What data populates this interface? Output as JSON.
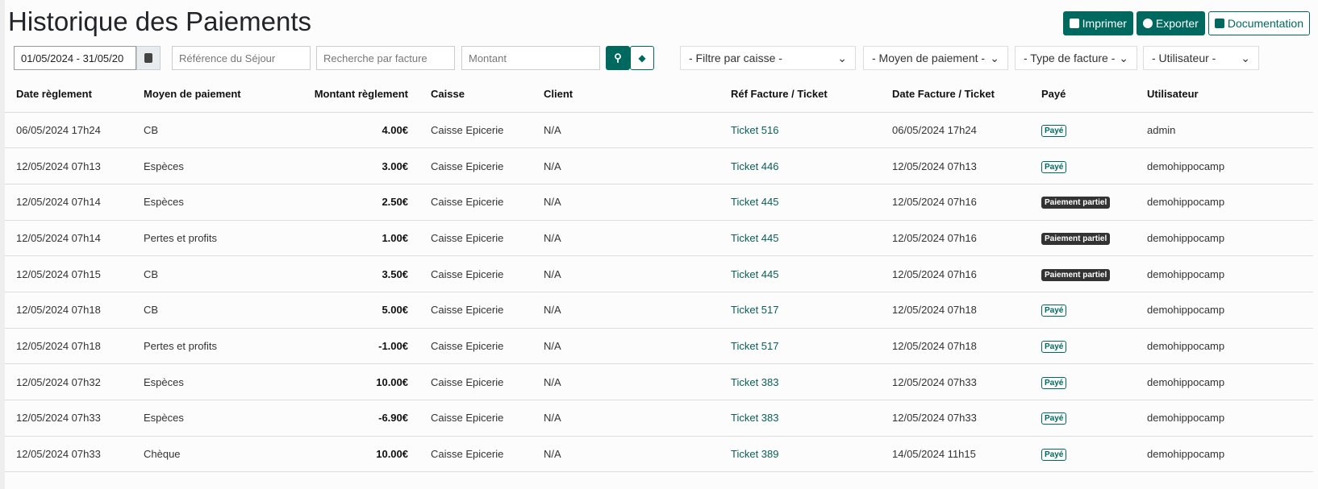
{
  "title": "Historique des Paiements",
  "colors": {
    "accent": "#00695f",
    "partial_badge": "#333333"
  },
  "buttons": {
    "print": "Imprimer",
    "export": "Exporter",
    "docs": "Documentation"
  },
  "filters": {
    "date_range": "01/05/2024 - 31/05/20",
    "sejour_placeholder": "Référence du Séjour",
    "facture_placeholder": "Recherche par facture",
    "montant_placeholder": "Montant",
    "caisse": "- Filtre par caisse -",
    "moyen": "- Moyen de paiement -",
    "type": "- Type de facture -",
    "utilisateur": "- Utilisateur -"
  },
  "columns": [
    "Date règlement",
    "Moyen de paiement",
    "Montant règlement",
    "Caisse",
    "Client",
    "Réf Facture / Ticket",
    "Date Facture / Ticket",
    "Payé",
    "Utilisateur"
  ],
  "rows": [
    [
      "06/05/2024 17h24",
      "CB",
      "4.00€",
      "Caisse Epicerie",
      "N/A",
      "Ticket 516",
      "06/05/2024 17h24",
      "Payé",
      "admin"
    ],
    [
      "12/05/2024 07h13",
      "Espèces",
      "3.00€",
      "Caisse Epicerie",
      "N/A",
      "Ticket 446",
      "12/05/2024 07h13",
      "Payé",
      "demohippocamp"
    ],
    [
      "12/05/2024 07h14",
      "Espèces",
      "2.50€",
      "Caisse Epicerie",
      "N/A",
      "Ticket 445",
      "12/05/2024 07h16",
      "Paiement partiel",
      "demohippocamp"
    ],
    [
      "12/05/2024 07h14",
      "Pertes et profits",
      "1.00€",
      "Caisse Epicerie",
      "N/A",
      "Ticket 445",
      "12/05/2024 07h16",
      "Paiement partiel",
      "demohippocamp"
    ],
    [
      "12/05/2024 07h15",
      "CB",
      "3.50€",
      "Caisse Epicerie",
      "N/A",
      "Ticket 445",
      "12/05/2024 07h16",
      "Paiement partiel",
      "demohippocamp"
    ],
    [
      "12/05/2024 07h18",
      "CB",
      "5.00€",
      "Caisse Epicerie",
      "N/A",
      "Ticket 517",
      "12/05/2024 07h18",
      "Payé",
      "demohippocamp"
    ],
    [
      "12/05/2024 07h18",
      "Pertes et profits",
      "-1.00€",
      "Caisse Epicerie",
      "N/A",
      "Ticket 517",
      "12/05/2024 07h18",
      "Payé",
      "demohippocamp"
    ],
    [
      "12/05/2024 07h32",
      "Espèces",
      "10.00€",
      "Caisse Epicerie",
      "N/A",
      "Ticket 383",
      "12/05/2024 07h33",
      "Payé",
      "demohippocamp"
    ],
    [
      "12/05/2024 07h33",
      "Espèces",
      "-6.90€",
      "Caisse Epicerie",
      "N/A",
      "Ticket 383",
      "12/05/2024 07h33",
      "Payé",
      "demohippocamp"
    ],
    [
      "12/05/2024 07h33",
      "Chèque",
      "10.00€",
      "Caisse Epicerie",
      "N/A",
      "Ticket 389",
      "14/05/2024 11h15",
      "Payé",
      "demohippocamp"
    ]
  ]
}
